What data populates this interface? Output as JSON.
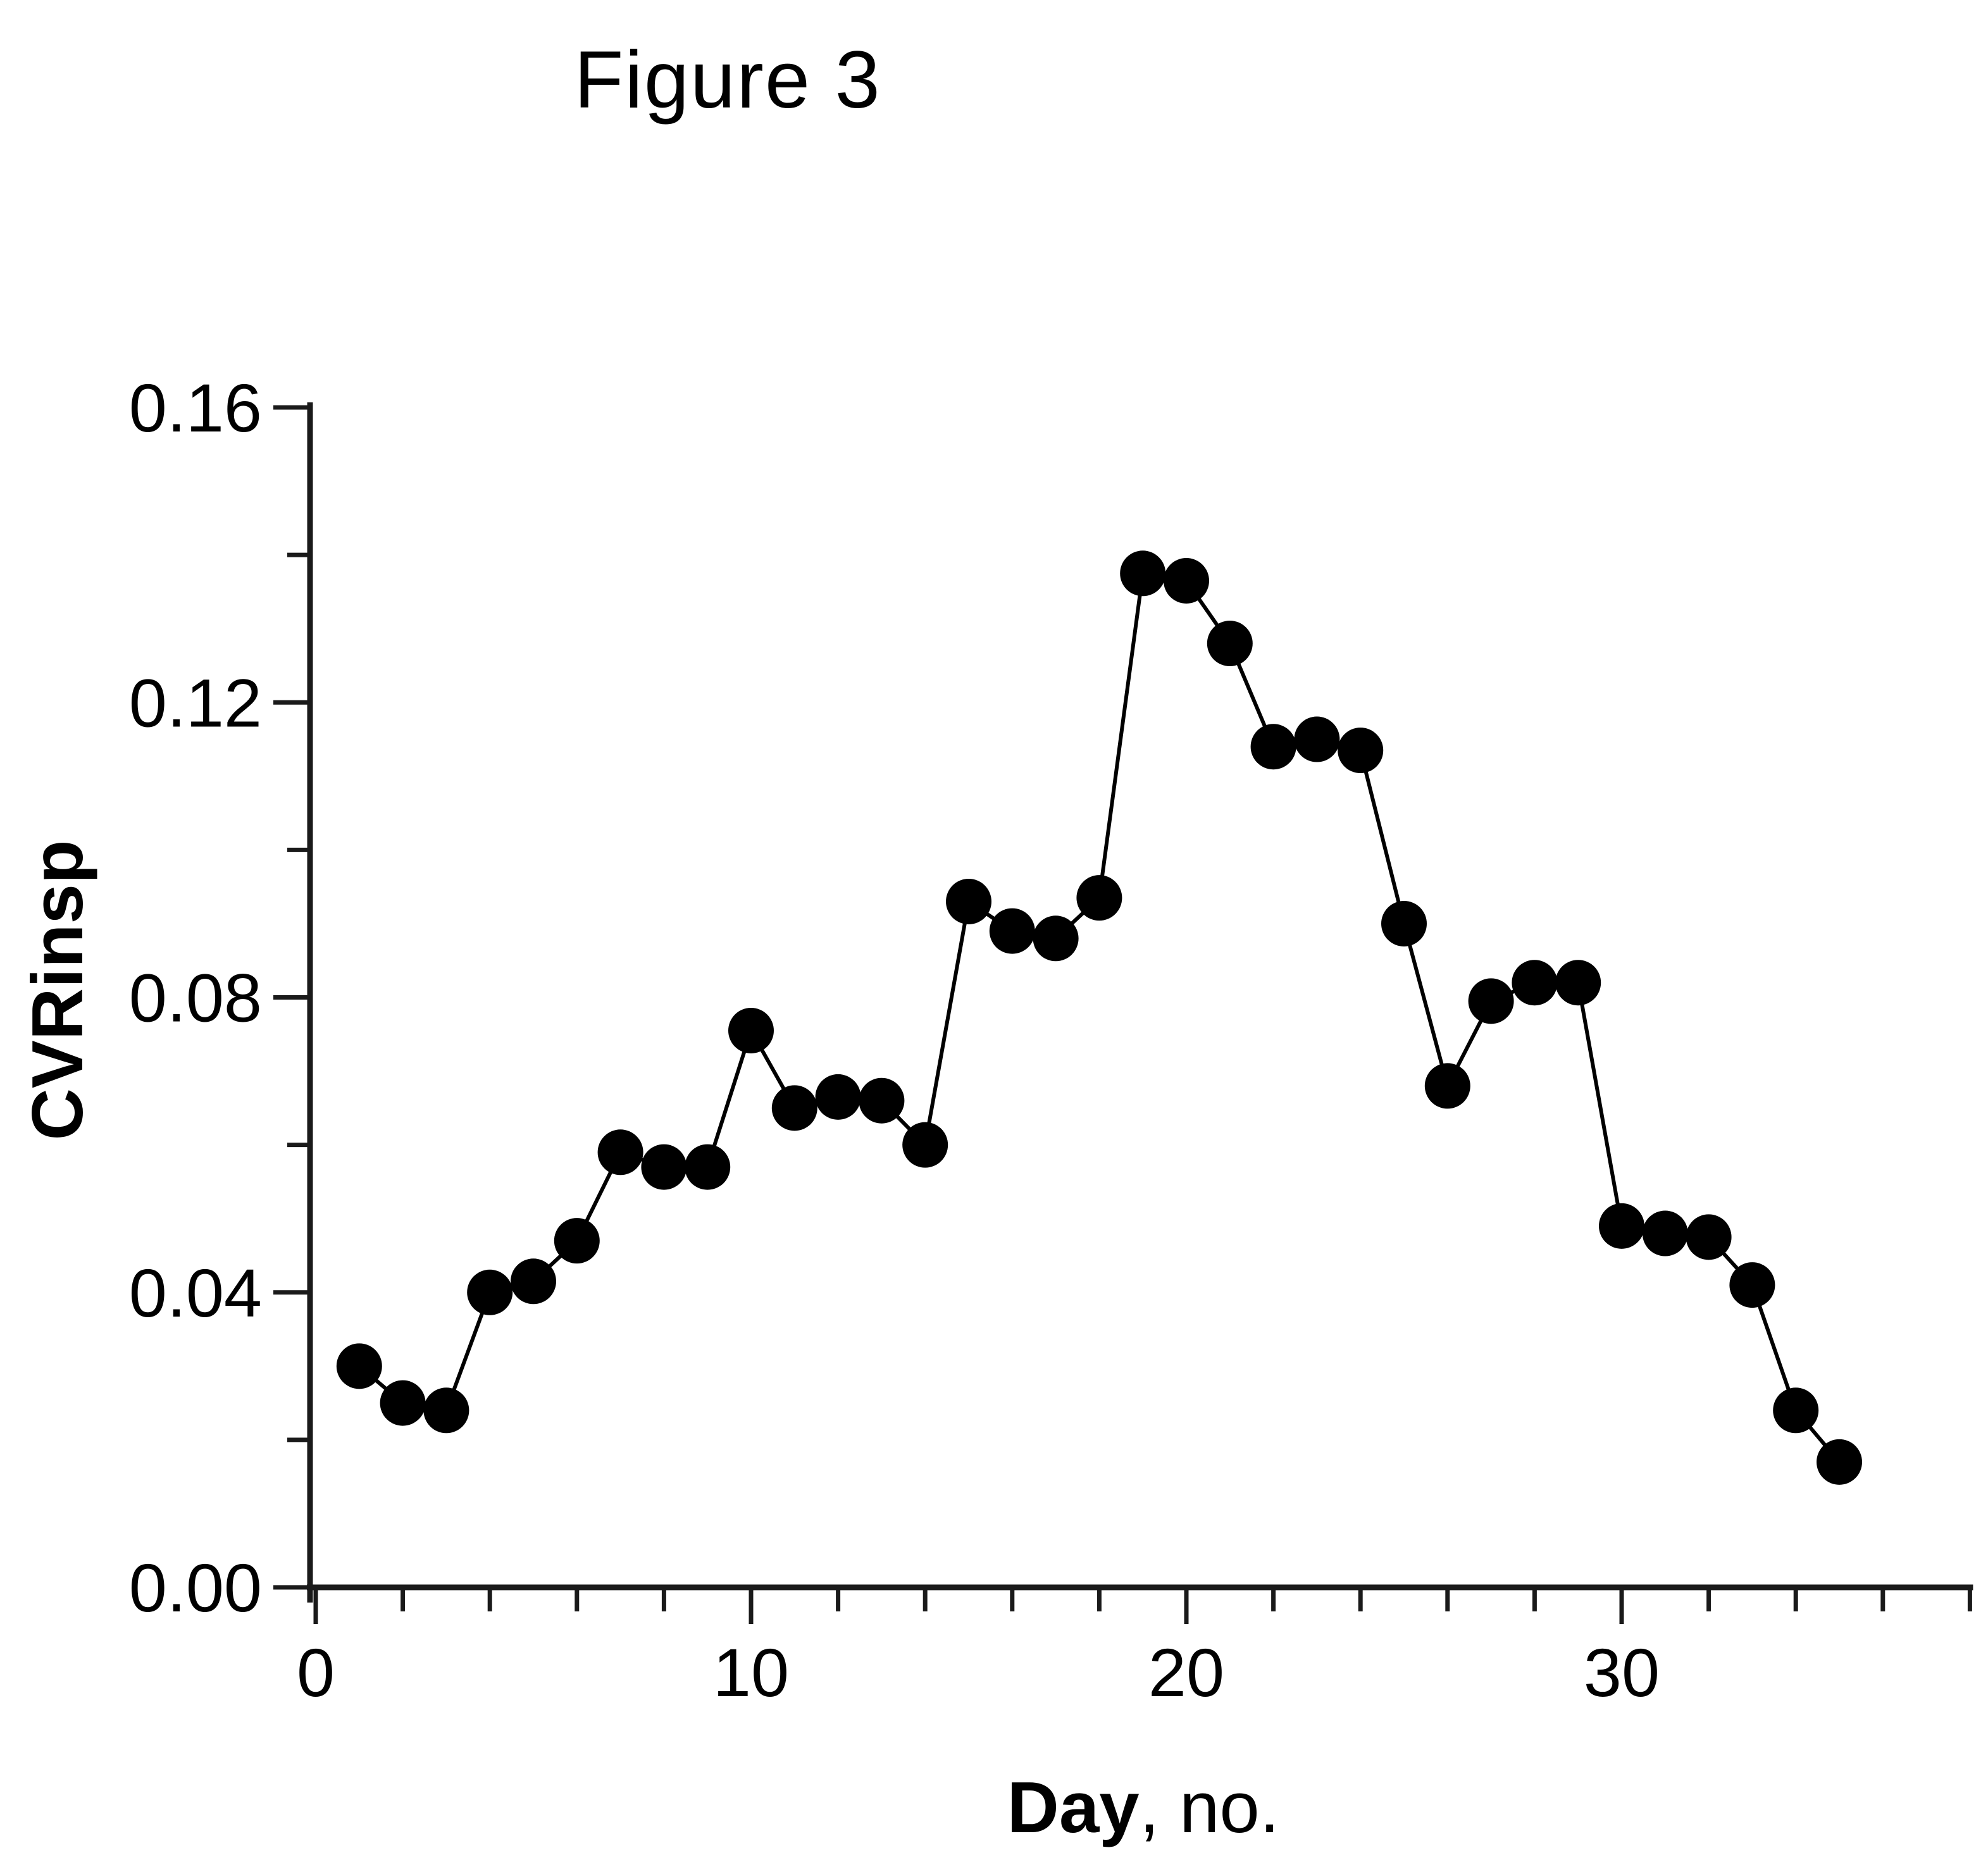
{
  "page": {
    "background_color": "#ffffff",
    "foreground_color": "#000000"
  },
  "chart_data": {
    "type": "line",
    "title": "Figure 3",
    "ylabel": "CVRinsp",
    "xlabel_bold": "Day",
    "xlabel_rest": ", no.",
    "series": [
      {
        "name": "CVRinsp",
        "marker": "filled-circle",
        "color": "#000000",
        "x": [
          1,
          2,
          3,
          4,
          5,
          6,
          7,
          8,
          9,
          10,
          11,
          12,
          13,
          14,
          15,
          16,
          17,
          18,
          19,
          20,
          21,
          22,
          23,
          24,
          25,
          26,
          27,
          28,
          29,
          30,
          31,
          32,
          33,
          34,
          35
        ],
        "values": [
          0.03,
          0.025,
          0.024,
          0.04,
          0.0415,
          0.047,
          0.059,
          0.057,
          0.057,
          0.0755,
          0.065,
          0.0665,
          0.066,
          0.06,
          0.093,
          0.089,
          0.088,
          0.0935,
          0.1375,
          0.1365,
          0.128,
          0.114,
          0.115,
          0.1135,
          0.09,
          0.068,
          0.0795,
          0.082,
          0.082,
          0.049,
          0.048,
          0.0475,
          0.041,
          0.024,
          0.017
        ]
      }
    ],
    "xlim": [
      0,
      38
    ],
    "ylim": [
      0.0,
      0.16
    ],
    "x_major_ticks": [
      0,
      10,
      20,
      30
    ],
    "x_tick_labels": [
      "0",
      "10",
      "20",
      "30"
    ],
    "x_minor_tick_step": 2,
    "y_major_ticks": [
      0.0,
      0.04,
      0.08,
      0.12,
      0.16
    ],
    "y_tick_labels": [
      "0.00",
      "0.04",
      "0.08",
      "0.12",
      "0.16"
    ],
    "y_minor_tick_step": 0.02,
    "grid": "off",
    "legend": "none",
    "axis_color": "#1a1a1a"
  }
}
